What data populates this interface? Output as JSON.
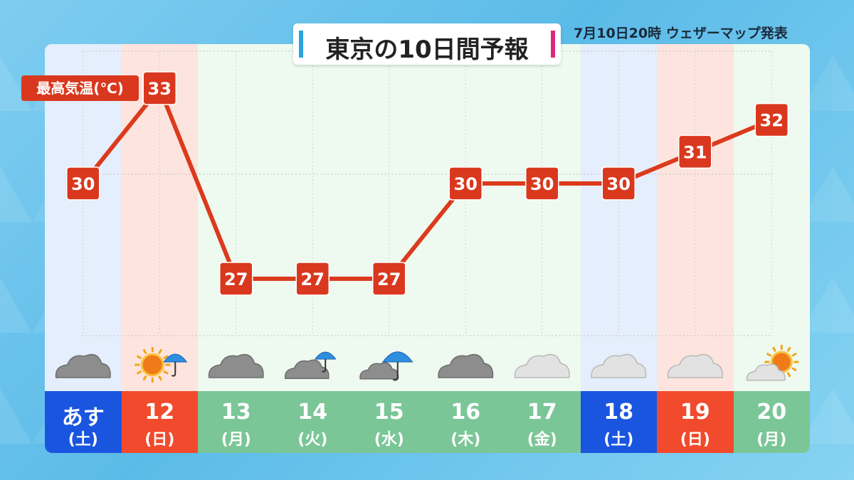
{
  "header": {
    "title": "東京の10日間予報",
    "issued": "7月10日20時 ウェザーマップ発表"
  },
  "colors": {
    "saturday_band": "#e4eefc",
    "sunday_band": "#fde4de",
    "weekday_band": "#eefaf0",
    "saturday_cell": "#1a55e0",
    "sunday_cell": "#f24a2c",
    "weekday_cell": "#7bc697",
    "line": "#dc3a1c",
    "label_box": "#d9381e"
  },
  "chart_data": {
    "type": "line",
    "title": "東京の10日間予報",
    "ylabel": "最高気温(℃)",
    "categories": [
      "あす",
      "12",
      "13",
      "14",
      "15",
      "16",
      "17",
      "18",
      "19",
      "20"
    ],
    "weekdays": [
      "(土)",
      "(日)",
      "(月)",
      "(火)",
      "(水)",
      "(木)",
      "(金)",
      "(土)",
      "(日)",
      "(月)"
    ],
    "day_types": [
      "sat",
      "sun",
      "wk",
      "wk",
      "wk",
      "wk",
      "wk",
      "sat",
      "sun",
      "wk"
    ],
    "series": [
      {
        "values": [
          30,
          33,
          27,
          27,
          27,
          30,
          30,
          30,
          31,
          32
        ]
      }
    ],
    "weather_icons": [
      "cloudy-icon",
      "sunny-then-rain-icon",
      "cloudy-icon",
      "cloudy-with-rain-icon",
      "rain-icon",
      "cloudy-icon",
      "cloudy-light-icon",
      "cloudy-light-icon",
      "cloudy-light-icon",
      "cloudy-then-sunny-icon"
    ],
    "grid": true,
    "legend": "none"
  }
}
